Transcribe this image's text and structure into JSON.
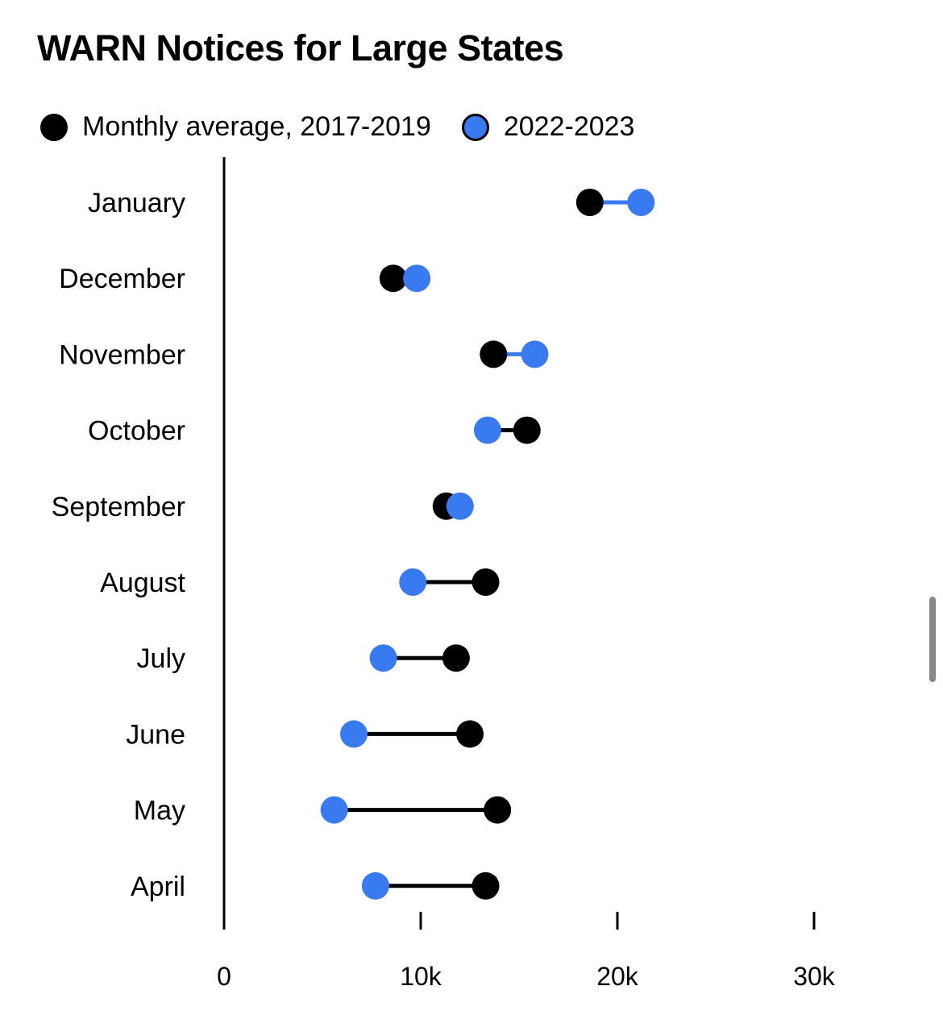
{
  "chart_data": {
    "type": "dumbbell",
    "title": "WARN Notices for Large States",
    "legend": [
      {
        "name": "Monthly average, 2017-2019",
        "color": "#000000"
      },
      {
        "name": "2022-2023",
        "color": "#3a7af0"
      }
    ],
    "categories": [
      "January",
      "December",
      "November",
      "October",
      "September",
      "August",
      "July",
      "June",
      "May",
      "April"
    ],
    "series": [
      {
        "name": "Monthly average, 2017-2019",
        "values": [
          18600,
          8600,
          13700,
          15400,
          11300,
          13300,
          11800,
          12500,
          13900,
          13300
        ]
      },
      {
        "name": "2022-2023",
        "values": [
          21200,
          9800,
          15800,
          13400,
          12000,
          9600,
          8100,
          6600,
          5600,
          7700
        ]
      }
    ],
    "xlim": [
      0,
      30000
    ],
    "xticks": [
      {
        "value": 0,
        "label": "0"
      },
      {
        "value": 10000,
        "label": "10k"
      },
      {
        "value": 20000,
        "label": "20k"
      },
      {
        "value": 30000,
        "label": "30k"
      }
    ],
    "colors": {
      "baseline": "#000000",
      "recent": "#3a7af0"
    }
  }
}
